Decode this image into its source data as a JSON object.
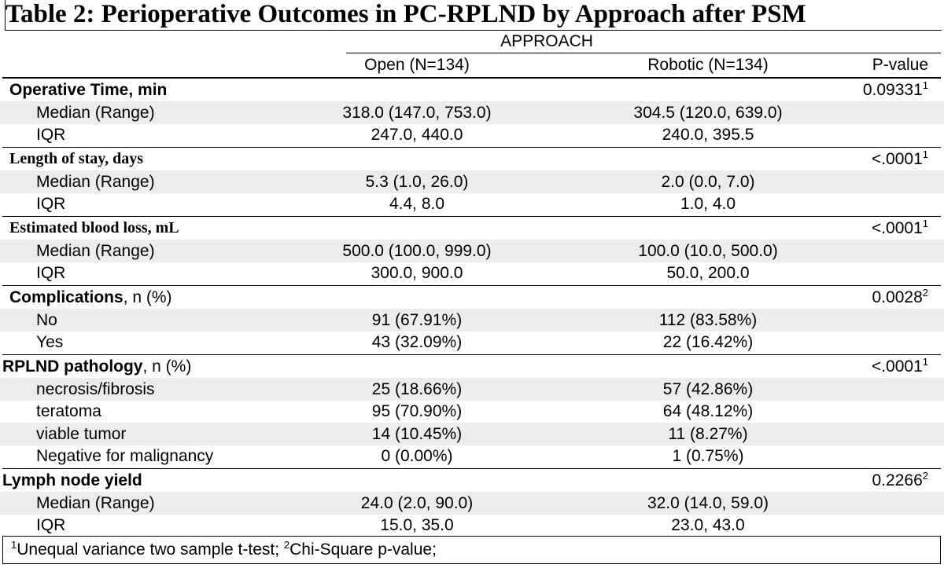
{
  "title": "Table 2: Perioperative Outcomes in PC-RPLND by Approach after PSM",
  "approach_label": "APPROACH",
  "columns": {
    "open": "Open (N=134)",
    "robotic": "Robotic (N=134)",
    "pvalue": "P-value"
  },
  "sections": {
    "optime": {
      "title": "Operative Time, min",
      "p": "0.09331",
      "p_note": "1",
      "rows": [
        {
          "label": "Median (Range)",
          "open": "318.0 (147.0, 753.0)",
          "robotic": "304.5 (120.0, 639.0)"
        },
        {
          "label": "IQR",
          "open": "247.0, 440.0",
          "robotic": "240.0, 395.5"
        }
      ]
    },
    "los": {
      "title": "Length of stay, days",
      "p": "<.0001",
      "p_note": "1",
      "rows": [
        {
          "label": "Median (Range)",
          "open": "5.3 (1.0, 26.0)",
          "robotic": "2.0 (0.0, 7.0)"
        },
        {
          "label": "IQR",
          "open": "4.4, 8.0",
          "robotic": "1.0, 4.0"
        }
      ]
    },
    "ebl": {
      "title": "Estimated blood loss, mL",
      "p": "<.0001",
      "p_note": "1",
      "rows": [
        {
          "label": "Median (Range)",
          "open": "500.0 (100.0, 999.0)",
          "robotic": "100.0 (10.0, 500.0)"
        },
        {
          "label": "IQR",
          "open": "300.0, 900.0",
          "robotic": "50.0, 200.0"
        }
      ]
    },
    "comp": {
      "title": "Complications",
      "suffix": ", n (%)",
      "p": "0.0028",
      "p_note": "2",
      "rows": [
        {
          "label": "No",
          "open": "91 (67.91%)",
          "robotic": "112 (83.58%)"
        },
        {
          "label": "Yes",
          "open": "43 (32.09%)",
          "robotic": "22 (16.42%)"
        }
      ]
    },
    "path": {
      "title": "RPLND pathology",
      "suffix": ", n (%)",
      "p": "<.0001",
      "p_note": "1",
      "rows": [
        {
          "label": "necrosis/fibrosis",
          "open": "25 (18.66%)",
          "robotic": "57 (42.86%)"
        },
        {
          "label": "teratoma",
          "open": "95 (70.90%)",
          "robotic": "64 (48.12%)"
        },
        {
          "label": "viable tumor",
          "open": "14 (10.45%)",
          "robotic": "11 (8.27%)"
        },
        {
          "label": "Negative for malignancy",
          "open": "0 (0.00%)",
          "robotic": "1 (0.75%)"
        }
      ]
    },
    "lny": {
      "title": "Lymph node yield",
      "p": "0.2266",
      "p_note": "2",
      "rows": [
        {
          "label": "Median (Range)",
          "open": "24.0 (2.0, 90.0)",
          "robotic": "32.0 (14.0, 59.0)"
        },
        {
          "label": "IQR",
          "open": "15.0, 35.0",
          "robotic": "23.0, 43.0"
        }
      ]
    }
  },
  "footnote": {
    "n1": "1",
    "t1": "Unequal variance two sample t-test; ",
    "n2": "2",
    "t2": "Chi-Square p-value;"
  }
}
